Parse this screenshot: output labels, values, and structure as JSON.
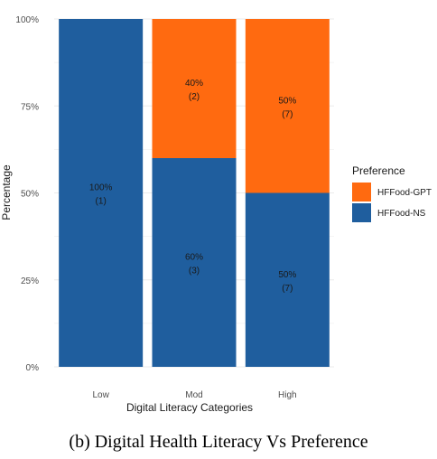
{
  "caption": "(b) Digital Health Literacy Vs Preference",
  "chart_data": {
    "type": "bar",
    "stacked": true,
    "categories": [
      "Low",
      "Mod",
      "High"
    ],
    "xlabel": "Digital Literacy Categories",
    "ylabel": "Percentage",
    "ylim": [
      0,
      100
    ],
    "yticks": [
      "0%",
      "25%",
      "50%",
      "75%",
      "100%"
    ],
    "grid": true,
    "legend": {
      "title": "Preference",
      "placement": "right"
    },
    "series": [
      {
        "name": "HFFood-NS",
        "color": "#1F5E9E",
        "values": [
          100,
          60,
          50
        ],
        "labels": [
          [
            "100%",
            "(1)"
          ],
          [
            "60%",
            "(3)"
          ],
          [
            "50%",
            "(7)"
          ]
        ]
      },
      {
        "name": "HFFood-GPT",
        "color": "#FF6A10",
        "values": [
          0,
          40,
          50
        ],
        "labels": [
          null,
          [
            "40%",
            "(2)"
          ],
          [
            "50%",
            "(7)"
          ]
        ]
      }
    ]
  }
}
